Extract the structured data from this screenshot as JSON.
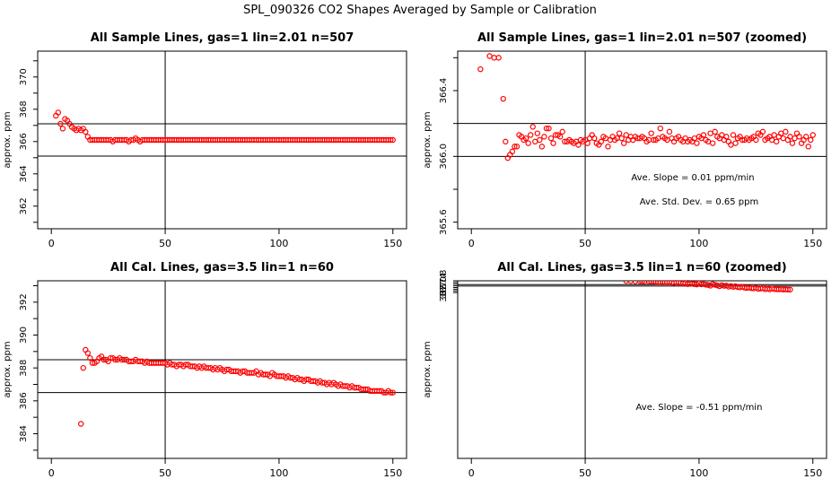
{
  "suptitle": "SPL_090326  CO2 Shapes Averaged by Sample or Calibration",
  "colors": {
    "points": "#ff0000",
    "axes": "#000000"
  },
  "chart_data": [
    {
      "type": "scatter",
      "title": "All Sample Lines, gas=1 lin=2.01 n=507",
      "xlabel": "",
      "ylabel": "approx. ppm",
      "xlim": [
        -6,
        156
      ],
      "ylim": [
        360.6,
        371.6
      ],
      "xticks": [
        0,
        50,
        100,
        150
      ],
      "yticks": [
        362,
        364,
        366,
        368,
        370
      ],
      "hlines": [
        367.1,
        365.1
      ],
      "vlines": [
        50
      ],
      "annotations": [],
      "x": [
        2,
        3,
        4,
        5,
        6,
        7,
        8,
        9,
        10,
        11,
        12,
        13,
        14,
        15,
        16,
        17,
        18,
        19,
        20,
        21,
        22,
        23,
        24,
        25,
        26,
        27,
        28,
        29,
        30,
        31,
        32,
        33,
        34,
        35,
        36,
        37,
        38,
        39,
        40,
        41,
        42,
        43,
        44,
        45,
        46,
        47,
        48,
        49,
        50,
        51,
        52,
        53,
        54,
        55,
        56,
        57,
        58,
        59,
        60,
        61,
        62,
        63,
        64,
        65,
        66,
        67,
        68,
        69,
        70,
        71,
        72,
        73,
        74,
        75,
        76,
        77,
        78,
        79,
        80,
        81,
        82,
        83,
        84,
        85,
        86,
        87,
        88,
        89,
        90,
        91,
        92,
        93,
        94,
        95,
        96,
        97,
        98,
        99,
        100,
        101,
        102,
        103,
        104,
        105,
        106,
        107,
        108,
        109,
        110,
        111,
        112,
        113,
        114,
        115,
        116,
        117,
        118,
        119,
        120,
        121,
        122,
        123,
        124,
        125,
        126,
        127,
        128,
        129,
        130,
        131,
        132,
        133,
        134,
        135,
        136,
        137,
        138,
        139,
        140,
        141,
        142,
        143,
        144,
        145,
        146,
        147,
        148,
        149,
        150
      ],
      "y": [
        367.6,
        367.8,
        367.1,
        366.8,
        367.4,
        367.3,
        367.1,
        366.9,
        366.8,
        366.7,
        366.8,
        366.7,
        366.8,
        366.6,
        366.3,
        366.1,
        366.1,
        366.1,
        366.1,
        366.1,
        366.1,
        366.1,
        366.1,
        366.1,
        366.1,
        366.0,
        366.1,
        366.1,
        366.1,
        366.1,
        366.1,
        366.1,
        366.0,
        366.1,
        366.1,
        366.2,
        366.1,
        366.0,
        366.1,
        366.1,
        366.1,
        366.1,
        366.1,
        366.1,
        366.1,
        366.1,
        366.1,
        366.1,
        366.1,
        366.1,
        366.1,
        366.1,
        366.1,
        366.1,
        366.1,
        366.1,
        366.1,
        366.1,
        366.1,
        366.1,
        366.1,
        366.1,
        366.1,
        366.1,
        366.1,
        366.1,
        366.1,
        366.1,
        366.1,
        366.1,
        366.1,
        366.1,
        366.1,
        366.1,
        366.1,
        366.1,
        366.1,
        366.1,
        366.1,
        366.1,
        366.1,
        366.1,
        366.1,
        366.1,
        366.1,
        366.1,
        366.1,
        366.1,
        366.1,
        366.1,
        366.1,
        366.1,
        366.1,
        366.1,
        366.1,
        366.1,
        366.1,
        366.1,
        366.1,
        366.1,
        366.1,
        366.1,
        366.1,
        366.1,
        366.1,
        366.1,
        366.1,
        366.1,
        366.1,
        366.1,
        366.1,
        366.1,
        366.1,
        366.1,
        366.1,
        366.1,
        366.1,
        366.1,
        366.1,
        366.1,
        366.1,
        366.1,
        366.1,
        366.1,
        366.1,
        366.1,
        366.1,
        366.1,
        366.1,
        366.1,
        366.1,
        366.1,
        366.1,
        366.1,
        366.1,
        366.1,
        366.1,
        366.1,
        366.1,
        366.1,
        366.1,
        366.1,
        366.1,
        366.1,
        366.1,
        366.1,
        366.1,
        366.1,
        366.1
      ]
    },
    {
      "type": "scatter",
      "title": "All Sample Lines, gas=1 lin=2.01 n=507 (zoomed)",
      "xlabel": "",
      "ylabel": "approx. ppm",
      "xlim": [
        -6,
        156
      ],
      "ylim": [
        365.56,
        366.64
      ],
      "xticks": [
        0,
        50,
        100,
        150
      ],
      "yticks": [
        365.6,
        366.0,
        366.4
      ],
      "hlines": [
        366.2,
        366.0
      ],
      "vlines": [
        50
      ],
      "annotations": [
        "Ave. Slope =  0.01  ppm/min",
        "Ave. Std. Dev. = 0.65  ppm"
      ],
      "x": [
        4,
        8,
        10,
        12,
        14,
        15,
        16,
        17,
        18,
        19,
        20,
        21,
        22,
        23,
        24,
        25,
        26,
        27,
        28,
        29,
        30,
        31,
        32,
        33,
        34,
        35,
        36,
        37,
        38,
        39,
        40,
        41,
        42,
        43,
        44,
        45,
        46,
        47,
        48,
        49,
        50,
        51,
        52,
        53,
        54,
        55,
        56,
        57,
        58,
        59,
        60,
        61,
        62,
        63,
        64,
        65,
        66,
        67,
        68,
        69,
        70,
        71,
        72,
        73,
        74,
        75,
        76,
        77,
        78,
        79,
        80,
        81,
        82,
        83,
        84,
        85,
        86,
        87,
        88,
        89,
        90,
        91,
        92,
        93,
        94,
        95,
        96,
        97,
        98,
        99,
        100,
        101,
        102,
        103,
        104,
        105,
        106,
        107,
        108,
        109,
        110,
        111,
        112,
        113,
        114,
        115,
        116,
        117,
        118,
        119,
        120,
        121,
        122,
        123,
        124,
        125,
        126,
        127,
        128,
        129,
        130,
        131,
        132,
        133,
        134,
        135,
        136,
        137,
        138,
        139,
        140,
        141,
        142,
        143,
        144,
        145,
        146,
        147,
        148,
        149,
        150
      ],
      "y": [
        366.53,
        366.61,
        366.6,
        366.6,
        366.35,
        366.09,
        365.99,
        366.01,
        366.03,
        366.06,
        366.06,
        366.13,
        366.12,
        366.1,
        366.11,
        366.08,
        366.13,
        366.18,
        366.09,
        366.14,
        366.1,
        366.06,
        366.12,
        366.17,
        366.17,
        366.11,
        366.08,
        366.13,
        366.13,
        366.12,
        366.15,
        366.09,
        366.09,
        366.1,
        366.09,
        366.08,
        366.09,
        366.07,
        366.1,
        366.09,
        366.1,
        366.08,
        366.11,
        366.13,
        366.11,
        366.08,
        366.07,
        366.09,
        366.12,
        366.11,
        366.06,
        366.1,
        366.12,
        366.1,
        366.11,
        366.14,
        366.11,
        366.08,
        366.13,
        366.1,
        366.12,
        366.1,
        366.12,
        366.11,
        366.11,
        366.12,
        366.11,
        366.09,
        366.1,
        366.14,
        366.1,
        366.1,
        366.11,
        366.17,
        366.12,
        366.11,
        366.1,
        366.15,
        366.11,
        366.09,
        366.11,
        366.12,
        366.1,
        366.09,
        366.11,
        366.09,
        366.1,
        366.09,
        366.11,
        366.08,
        366.12,
        366.11,
        366.13,
        366.1,
        366.09,
        366.14,
        366.08,
        366.15,
        366.12,
        366.11,
        366.13,
        366.1,
        366.12,
        366.09,
        366.07,
        366.13,
        366.08,
        366.11,
        366.12,
        366.1,
        366.1,
        366.11,
        366.1,
        366.11,
        366.12,
        366.1,
        366.14,
        366.13,
        366.15,
        366.1,
        366.11,
        366.12,
        366.1,
        366.13,
        366.09,
        366.12,
        366.14,
        366.11,
        366.15,
        366.1,
        366.12,
        366.08,
        366.11,
        366.14,
        366.12,
        366.08,
        366.1,
        366.12,
        366.06,
        366.1,
        366.13
      ]
    },
    {
      "type": "scatter",
      "title": "All Cal. Lines, gas=3.5 lin=1 n=60",
      "xlabel": "",
      "ylabel": "approx. ppm",
      "xlim": [
        -6,
        156
      ],
      "ylim": [
        382.5,
        393.3
      ],
      "xticks": [
        0,
        50,
        100,
        150
      ],
      "yticks": [
        384,
        386,
        388,
        390,
        392
      ],
      "hlines": [
        388.5,
        386.5
      ],
      "vlines": [
        50
      ],
      "annotations": [],
      "x": [
        13,
        14,
        15,
        16,
        17,
        18,
        19,
        20,
        21,
        22,
        23,
        24,
        25,
        26,
        27,
        28,
        29,
        30,
        31,
        32,
        33,
        34,
        35,
        36,
        37,
        38,
        39,
        40,
        41,
        42,
        43,
        44,
        45,
        46,
        47,
        48,
        49,
        50,
        51,
        52,
        53,
        54,
        55,
        56,
        57,
        58,
        59,
        60,
        61,
        62,
        63,
        64,
        65,
        66,
        67,
        68,
        69,
        70,
        71,
        72,
        73,
        74,
        75,
        76,
        77,
        78,
        79,
        80,
        81,
        82,
        83,
        84,
        85,
        86,
        87,
        88,
        89,
        90,
        91,
        92,
        93,
        94,
        95,
        96,
        97,
        98,
        99,
        100,
        101,
        102,
        103,
        104,
        105,
        106,
        107,
        108,
        109,
        110,
        111,
        112,
        113,
        114,
        115,
        116,
        117,
        118,
        119,
        120,
        121,
        122,
        123,
        124,
        125,
        126,
        127,
        128,
        129,
        130,
        131,
        132,
        133,
        134,
        135,
        136,
        137,
        138,
        139,
        140,
        141,
        142,
        143,
        144,
        145,
        146,
        147,
        148,
        149,
        150
      ],
      "y": [
        384.6,
        388.0,
        389.1,
        388.9,
        388.6,
        388.3,
        388.3,
        388.4,
        388.6,
        388.7,
        388.5,
        388.5,
        388.4,
        388.6,
        388.6,
        388.5,
        388.5,
        388.6,
        388.5,
        388.5,
        388.5,
        388.4,
        388.4,
        388.4,
        388.5,
        388.4,
        388.4,
        388.4,
        388.3,
        388.4,
        388.3,
        388.3,
        388.3,
        388.3,
        388.3,
        388.3,
        388.3,
        388.3,
        388.2,
        388.3,
        388.2,
        388.2,
        388.1,
        388.2,
        388.2,
        388.1,
        388.2,
        388.2,
        388.1,
        388.1,
        388.1,
        388.0,
        388.1,
        388.0,
        388.1,
        388.0,
        388.0,
        388.0,
        387.9,
        388.0,
        387.9,
        388.0,
        387.9,
        387.8,
        387.9,
        387.9,
        387.8,
        387.8,
        387.8,
        387.8,
        387.7,
        387.8,
        387.8,
        387.7,
        387.7,
        387.7,
        387.7,
        387.8,
        387.6,
        387.7,
        387.6,
        387.6,
        387.6,
        387.5,
        387.7,
        387.6,
        387.5,
        387.5,
        387.5,
        387.5,
        387.4,
        387.5,
        387.4,
        387.4,
        387.3,
        387.4,
        387.3,
        387.3,
        387.2,
        387.3,
        387.3,
        387.2,
        387.2,
        387.2,
        387.1,
        387.2,
        387.1,
        387.1,
        387.0,
        387.1,
        387.0,
        387.1,
        387.0,
        386.9,
        387.0,
        386.9,
        386.9,
        386.9,
        386.8,
        386.9,
        386.8,
        386.8,
        386.8,
        386.7,
        386.7,
        386.7,
        386.7,
        386.6,
        386.6,
        386.6,
        386.6,
        386.6,
        386.6,
        386.5,
        386.5,
        386.6,
        386.5,
        386.5
      ]
    },
    {
      "type": "scatter",
      "title": "All Cal. Lines, gas=3.5 lin=1 n=60 (zoomed)",
      "xlabel": "",
      "ylabel": "approx. ppm",
      "xlim": [
        -6,
        156
      ],
      "ylim": [
        366.93,
        388.0
      ],
      "ylim_note": "",
      "xticks": [
        0,
        50,
        100,
        150
      ],
      "yticks": [
        387.0,
        387.4,
        387.8
      ],
      "hlines": [
        387.55,
        387.38
      ],
      "vlines": [
        50
      ],
      "annotations": [
        "Ave. Slope =  -0.51  ppm/min"
      ],
      "x": [
        68,
        70,
        72,
        74,
        75,
        76,
        78,
        79,
        80,
        81,
        82,
        83,
        84,
        85,
        86,
        87,
        88,
        89,
        90,
        91,
        92,
        93,
        94,
        95,
        96,
        97,
        98,
        99,
        100,
        101,
        102,
        103,
        104,
        105,
        106,
        107,
        108,
        109,
        110,
        111,
        112,
        113,
        114,
        115,
        116,
        117,
        118,
        119,
        120,
        121,
        122,
        123,
        124,
        125,
        126,
        127,
        128,
        129,
        130,
        131,
        132,
        133,
        134,
        135,
        136,
        137,
        138,
        139,
        140
      ],
      "y": [
        387.99,
        387.97,
        387.95,
        387.95,
        387.94,
        387.92,
        387.92,
        387.9,
        387.91,
        387.88,
        387.85,
        387.82,
        387.9,
        387.84,
        387.81,
        387.88,
        387.79,
        387.75,
        387.85,
        387.77,
        387.82,
        387.68,
        387.72,
        387.6,
        387.67,
        387.65,
        387.6,
        387.56,
        387.72,
        387.58,
        387.61,
        387.54,
        387.5,
        387.42,
        387.6,
        387.52,
        387.45,
        387.35,
        387.48,
        387.4,
        387.43,
        387.3,
        387.38,
        387.28,
        387.35,
        387.25,
        387.22,
        387.3,
        387.18,
        387.15,
        387.2,
        387.12,
        387.1,
        387.18,
        387.04,
        387.08,
        387.14,
        387.0,
        387.06,
        386.98,
        387.1,
        387.02,
        387.0,
        386.98,
        387.01,
        386.96,
        386.98,
        386.96,
        386.95
      ]
    }
  ]
}
